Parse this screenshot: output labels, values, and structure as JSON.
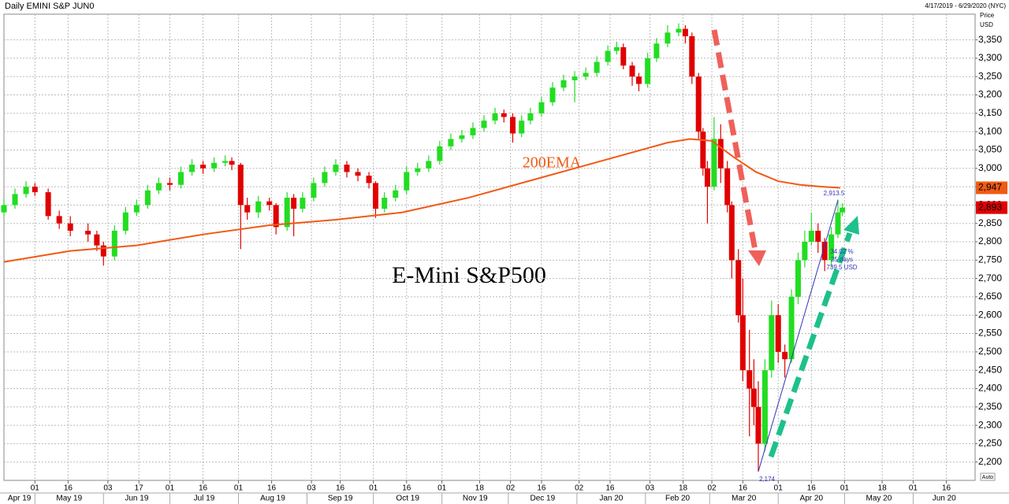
{
  "chart_data": {
    "type": "candlestick",
    "title": "Daily EMINI S&P JUN0",
    "subtitle": "4/17/2019 - 6/29/2020 (NYC)",
    "y_axis_label": [
      "Price",
      "USD"
    ],
    "annotation": "E-Mini S&P500",
    "auto_label": "Auto",
    "up_color": "#22dd22",
    "down_color": "#e00000",
    "grid": true,
    "xlim": [
      0,
      439
    ],
    "ylim": [
      2150,
      3420
    ],
    "yticks": [
      {
        "value": 2200,
        "label": "2,200"
      },
      {
        "value": 2250,
        "label": "2,250"
      },
      {
        "value": 2300,
        "label": "2,300"
      },
      {
        "value": 2350,
        "label": "2,350"
      },
      {
        "value": 2400,
        "label": "2,400"
      },
      {
        "value": 2450,
        "label": "2,450"
      },
      {
        "value": 2500,
        "label": "2,500"
      },
      {
        "value": 2550,
        "label": "2,550"
      },
      {
        "value": 2600,
        "label": "2,600"
      },
      {
        "value": 2650,
        "label": "2,650"
      },
      {
        "value": 2700,
        "label": "2,700"
      },
      {
        "value": 2750,
        "label": "2,750"
      },
      {
        "value": 2800,
        "label": "2,800"
      },
      {
        "value": 2850,
        "label": "2,850"
      },
      {
        "value": 2900,
        "label": "2,900"
      },
      {
        "value": 2950,
        "label": "2,950"
      },
      {
        "value": 3000,
        "label": "3,000"
      },
      {
        "value": 3050,
        "label": "3,050"
      },
      {
        "value": 3100,
        "label": "3,100"
      },
      {
        "value": 3150,
        "label": "3,150"
      },
      {
        "value": 3200,
        "label": "3,200"
      },
      {
        "value": 3250,
        "label": "3,250"
      },
      {
        "value": 3300,
        "label": "3,300"
      },
      {
        "value": 3350,
        "label": "3,350"
      }
    ],
    "xticks": [
      {
        "value": 14,
        "label": "01"
      },
      {
        "value": 29,
        "label": "16"
      },
      {
        "value": 47,
        "label": "03"
      },
      {
        "value": 61,
        "label": "17"
      },
      {
        "value": 75,
        "label": "01"
      },
      {
        "value": 90,
        "label": "16"
      },
      {
        "value": 106,
        "label": "01"
      },
      {
        "value": 121,
        "label": "16"
      },
      {
        "value": 139,
        "label": "03"
      },
      {
        "value": 152,
        "label": "16"
      },
      {
        "value": 167,
        "label": "01"
      },
      {
        "value": 182,
        "label": "16"
      },
      {
        "value": 198,
        "label": "01"
      },
      {
        "value": 215,
        "label": "18"
      },
      {
        "value": 229,
        "label": "02"
      },
      {
        "value": 243,
        "label": "16"
      },
      {
        "value": 260,
        "label": "02"
      },
      {
        "value": 274,
        "label": "16"
      },
      {
        "value": 292,
        "label": "03"
      },
      {
        "value": 307,
        "label": "18"
      },
      {
        "value": 320,
        "label": "02"
      },
      {
        "value": 334,
        "label": "16"
      },
      {
        "value": 350,
        "label": "01"
      },
      {
        "value": 365,
        "label": "16"
      },
      {
        "value": 380,
        "label": "01"
      },
      {
        "value": 397,
        "label": "18"
      },
      {
        "value": 411,
        "label": "01"
      },
      {
        "value": 426,
        "label": "16"
      }
    ],
    "months": [
      {
        "value": -16,
        "label": "Apr 19"
      },
      {
        "value": 14,
        "label": "May 19"
      },
      {
        "value": 45,
        "label": "Jun 19"
      },
      {
        "value": 75,
        "label": "Jul 19"
      },
      {
        "value": 106,
        "label": "Aug 19"
      },
      {
        "value": 137,
        "label": "Sep 19"
      },
      {
        "value": 167,
        "label": "Oct 19"
      },
      {
        "value": 198,
        "label": "Nov 19"
      },
      {
        "value": 228,
        "label": "Dec 19"
      },
      {
        "value": 259,
        "label": "Jan 20"
      },
      {
        "value": 290,
        "label": "Feb 20"
      },
      {
        "value": 319,
        "label": "Mar 20"
      },
      {
        "value": 350,
        "label": "Apr 20"
      },
      {
        "value": 380,
        "label": "May 20"
      },
      {
        "value": 411,
        "label": "Jun 20"
      }
    ],
    "candles": {
      "x": [
        0,
        5,
        10,
        14,
        20,
        25,
        30,
        38,
        42,
        45,
        50,
        55,
        60,
        65,
        70,
        75,
        80,
        85,
        90,
        95,
        100,
        103,
        107,
        110,
        115,
        120,
        123,
        128,
        131,
        135,
        140,
        145,
        150,
        155,
        160,
        165,
        168,
        172,
        177,
        182,
        187,
        192,
        197,
        202,
        207,
        212,
        217,
        222,
        226,
        230,
        234,
        238,
        243,
        248,
        253,
        258,
        263,
        268,
        273,
        277,
        280,
        284,
        287,
        291,
        295,
        300,
        305,
        308,
        311,
        314,
        316,
        318,
        321,
        324,
        327,
        329,
        332,
        334,
        337,
        339,
        341,
        344,
        347,
        350,
        353,
        356,
        359,
        362,
        365,
        368,
        371,
        374,
        377,
        379
      ],
      "open": [
        2880,
        2900,
        2930,
        2950,
        2935,
        2870,
        2850,
        2830,
        2820,
        2790,
        2760,
        2830,
        2880,
        2900,
        2940,
        2960,
        2955,
        2990,
        3010,
        3000,
        3015,
        3020,
        3010,
        2900,
        2880,
        2910,
        2900,
        2840,
        2920,
        2890,
        2920,
        2960,
        2990,
        3010,
        2990,
        2980,
        2960,
        2890,
        2920,
        2940,
        2990,
        3000,
        3020,
        3060,
        3080,
        3090,
        3110,
        3130,
        3150,
        3140,
        3095,
        3130,
        3150,
        3180,
        3220,
        3240,
        3250,
        3260,
        3290,
        3320,
        3330,
        3280,
        3250,
        3230,
        3300,
        3340,
        3370,
        3380,
        3360,
        3250,
        3100,
        3000,
        2950,
        3080,
        3000,
        2900,
        2750,
        2600,
        2450,
        2400,
        2350,
        2250,
        2450,
        2600,
        2500,
        2480,
        2650,
        2750,
        2800,
        2830,
        2800,
        2750,
        2820,
        2880
      ],
      "high": [
        2915,
        2945,
        2965,
        2960,
        2945,
        2885,
        2870,
        2850,
        2830,
        2800,
        2845,
        2895,
        2915,
        2955,
        2975,
        2975,
        3005,
        3025,
        3020,
        3030,
        3035,
        3030,
        3015,
        2920,
        2925,
        2920,
        2905,
        2935,
        2930,
        2935,
        2975,
        3005,
        3025,
        3020,
        3000,
        2990,
        2965,
        2935,
        2955,
        3005,
        3015,
        3035,
        3075,
        3095,
        3105,
        3125,
        3145,
        3165,
        3160,
        3150,
        3145,
        3165,
        3195,
        3235,
        3255,
        3265,
        3275,
        3305,
        3335,
        3345,
        3340,
        3290,
        3260,
        3315,
        3355,
        3390,
        3395,
        3390,
        3370,
        3260,
        3110,
        3020,
        3140,
        3120,
        3020,
        2910,
        2780,
        2700,
        2560,
        2480,
        2420,
        2480,
        2640,
        2630,
        2520,
        2670,
        2770,
        2830,
        2880,
        2850,
        2810,
        2840,
        2915,
        2905
      ],
      "low": [
        2870,
        2890,
        2920,
        2925,
        2860,
        2835,
        2815,
        2800,
        2775,
        2735,
        2750,
        2820,
        2870,
        2890,
        2930,
        2940,
        2945,
        2980,
        2985,
        2990,
        3005,
        2995,
        2780,
        2860,
        2865,
        2885,
        2820,
        2830,
        2815,
        2880,
        2910,
        2950,
        2980,
        2975,
        2965,
        2945,
        2865,
        2880,
        2910,
        2930,
        2980,
        2990,
        3010,
        3050,
        3070,
        3080,
        3100,
        3120,
        3125,
        3070,
        3085,
        3120,
        3140,
        3170,
        3210,
        3180,
        3240,
        3250,
        3280,
        3310,
        3270,
        3225,
        3210,
        3220,
        3290,
        3330,
        3360,
        3340,
        3230,
        3080,
        2980,
        2850,
        2940,
        2960,
        2880,
        2700,
        2580,
        2420,
        2270,
        2300,
        2174,
        2230,
        2430,
        2470,
        2430,
        2470,
        2630,
        2730,
        2790,
        2770,
        2720,
        2730,
        2810,
        2870
      ],
      "close": [
        2900,
        2930,
        2950,
        2935,
        2870,
        2850,
        2830,
        2820,
        2790,
        2760,
        2830,
        2880,
        2900,
        2940,
        2960,
        2955,
        2990,
        3010,
        3000,
        3015,
        3020,
        3010,
        2900,
        2880,
        2910,
        2900,
        2840,
        2920,
        2890,
        2920,
        2960,
        2990,
        3010,
        2990,
        2980,
        2960,
        2890,
        2920,
        2940,
        2990,
        3000,
        3020,
        3060,
        3080,
        3090,
        3110,
        3130,
        3150,
        3140,
        3095,
        3130,
        3150,
        3180,
        3220,
        3240,
        3250,
        3260,
        3290,
        3320,
        3330,
        3280,
        3250,
        3230,
        3300,
        3340,
        3370,
        3380,
        3360,
        3250,
        3100,
        3000,
        2950,
        3080,
        3000,
        2900,
        2750,
        2600,
        2450,
        2400,
        2350,
        2250,
        2450,
        2600,
        2500,
        2480,
        2650,
        2750,
        2800,
        2830,
        2800,
        2750,
        2820,
        2880,
        2893
      ]
    },
    "ema": {
      "name": "200EMA",
      "color": "#f05a14",
      "x": [
        0,
        30,
        60,
        90,
        120,
        150,
        180,
        210,
        240,
        270,
        300,
        310,
        320,
        330,
        340,
        350,
        360,
        370,
        378
      ],
      "values": [
        2745,
        2775,
        2790,
        2820,
        2845,
        2860,
        2880,
        2920,
        2970,
        3020,
        3070,
        3080,
        3075,
        3030,
        2990,
        2965,
        2955,
        2950,
        2947
      ]
    },
    "last_tags": [
      {
        "value": 2947,
        "label": "2,947",
        "color": "#f05a14"
      },
      {
        "value": 2893,
        "label": "2,893",
        "color": "#e00000"
      }
    ],
    "trendline": {
      "color": "#3333bb",
      "x": [
        341,
        377
      ],
      "values": [
        2174,
        2913.5
      ],
      "value_labels": [
        "2,174",
        "2,913.5"
      ]
    },
    "measure": [
      "34.02 %",
      "25 days",
      "739.5 USD"
    ]
  }
}
